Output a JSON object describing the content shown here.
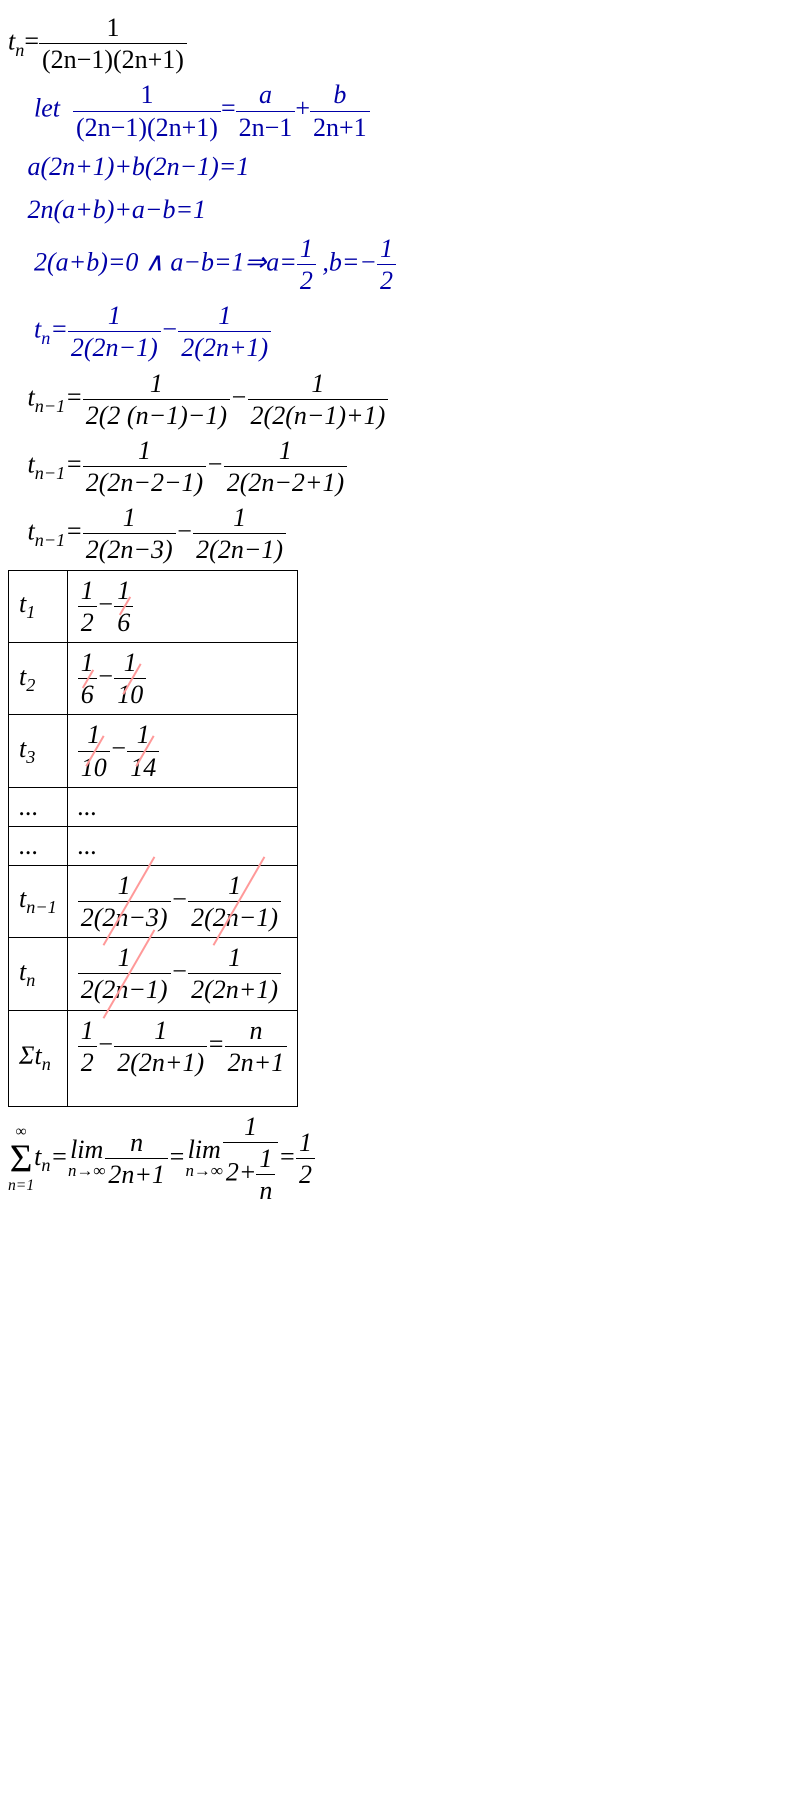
{
  "colors": {
    "blue": "#0000a7",
    "black": "#000000",
    "strike": "#ff9999",
    "background": "#ffffff"
  },
  "fontsize_pt": 26,
  "lines": {
    "l1": {
      "lhs_pre": "t",
      "lhs_sub": "n",
      "eq": "=",
      "num": "1",
      "den": "(2n−1)(2n+1)"
    },
    "l2": {
      "pre": "    let  ",
      "num1": "1",
      "den1": "(2n−1)(2n+1)",
      "eq1": "=",
      "num2": "a",
      "den2": "2n−1",
      "plus": "+",
      "num3": "b",
      "den3": "2n+1"
    },
    "l3": "   a(2n+1)+b(2n−1)=1",
    "l4": "   2n(a+b)+a−b=1",
    "l5": {
      "pre": "    2(a+b)=0 ∧ a−b=1⇒a=",
      "n1": "1",
      "d1": "2",
      "mid": " ,b=−",
      "n2": "1",
      "d2": "2"
    },
    "l6": {
      "pre": "    t",
      "sub": "n",
      "eq": "=",
      "n1": "1",
      "d1": "2(2n−1)",
      "minus": "−",
      "n2": "1",
      "d2": "2(2n+1)"
    },
    "l7": {
      "pre": "   t",
      "sub": "n−1",
      "eq": "=",
      "n1": "1",
      "d1": "2(2 (n−1)−1)",
      "minus": "−",
      "n2": "1",
      "d2": "2(2(n−1)+1)"
    },
    "l8": {
      "pre": "   t",
      "sub": "n−1",
      "eq": "=",
      "n1": "1",
      "d1": "2(2n−2−1)",
      "minus": "−",
      "n2": "1",
      "d2": "2(2n−2+1)"
    },
    "l9": {
      "pre": "   t",
      "sub": "n−1",
      "eq": "=",
      "n1": "1",
      "d1": "2(2n−3)",
      "minus": "−",
      "n2": "1",
      "d2": "2(2n−1)"
    }
  },
  "table": {
    "rows": [
      {
        "c1": "t",
        "c1sub": "1",
        "n1": "1",
        "d1": "2",
        "minus": "−",
        "n2": "1",
        "d2": "6",
        "strike2": true
      },
      {
        "c1": "t",
        "c1sub": "2",
        "n1": "1",
        "d1": "6",
        "minus": "−",
        "n2": "1",
        "d2": "10",
        "strike1": true,
        "strike2": true
      },
      {
        "c1": "t",
        "c1sub": "3",
        "n1": "1",
        "d1": "10",
        "minus": "−",
        "n2": "1",
        "d2": "14",
        "strike1": true,
        "strike2": true
      },
      {
        "c1": "...",
        "c2": "..."
      },
      {
        "c1": "...",
        "c2": "..."
      },
      {
        "c1": "t",
        "c1sub": "n−1",
        "n1": "1",
        "d1": "2(2n−3)",
        "minus": "−",
        "n2": "1",
        "d2": "2(2n−1)",
        "strike1": true,
        "strike2": true
      },
      {
        "c1": "t",
        "c1sub": "n",
        "n1": "1",
        "d1": "2(2n−1)",
        "minus": "−",
        "n2": "1",
        "d2": "2(2n+1)",
        "strike1": true
      },
      {
        "c1": "Σt",
        "c1sub": "n",
        "sumsym": true,
        "n1": "1",
        "d1": "2",
        "minus": "−",
        "n2": "1",
        "d2": "2(2n+1)",
        "eq": "=",
        "n3": "n",
        "d3": "2n+1",
        "extraspace": true
      }
    ]
  },
  "final": {
    "sum_top": "∞",
    "sum_sym": "Σ",
    "sum_bot": "n=1",
    "t": "t",
    "tsub": "n",
    "eq1": "=",
    "lim": "lim",
    "limsub": "n→∞",
    "n1": "n",
    "d1": "2n+1",
    "eq2": "=",
    "n2": "1",
    "d2_outer": "2+",
    "d2_n": "1",
    "d2_d": "n",
    "eq3": "=",
    "n3": "1",
    "d3": "2"
  }
}
